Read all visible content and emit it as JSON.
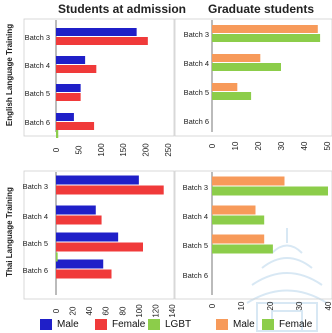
{
  "row_labels": [
    "English Language Training",
    "Thai Language Training"
  ],
  "col_titles": [
    "Students at admission",
    "Graduate students"
  ],
  "legend": [
    {
      "label": "Male",
      "color": "#1f1fc8"
    },
    {
      "label": "Female",
      "color": "#f03a3a"
    },
    {
      "label": "LGBT",
      "color": "#8ccd4a"
    },
    {
      "label": "Male",
      "color": "#f79a5a"
    },
    {
      "label": "Female",
      "color": "#8ccd4a"
    }
  ],
  "colors": {
    "male": "#1f1fc8",
    "female": "#f03a3a",
    "lgbt": "#8ccd4a",
    "grad_male": "#f79a5a",
    "grad_female": "#8ccd4a"
  },
  "chart_data": [
    {
      "type": "bar",
      "orientation": "horizontal",
      "row": "English Language Training",
      "title": "Students at admission",
      "categories": [
        "Batch 3",
        "Batch 4",
        "Batch 5",
        "Batch 6"
      ],
      "series": [
        {
          "name": "Male",
          "values": [
            180,
            65,
            55,
            40
          ]
        },
        {
          "name": "Female",
          "values": [
            205,
            90,
            55,
            85
          ]
        },
        {
          "name": "LGBT",
          "values": [
            0,
            0,
            0,
            5
          ]
        }
      ],
      "xlim": [
        0,
        250
      ],
      "xticks": [
        0,
        50,
        100,
        150,
        200,
        250
      ]
    },
    {
      "type": "bar",
      "orientation": "horizontal",
      "row": "English Language Training",
      "title": "Graduate students",
      "categories": [
        "Batch 3",
        "Batch 4",
        "Batch 5",
        "Batch 6"
      ],
      "series": [
        {
          "name": "Male",
          "values": [
            46,
            21,
            11,
            0
          ]
        },
        {
          "name": "Female",
          "values": [
            47,
            30,
            17,
            0
          ]
        }
      ],
      "xlim": [
        0,
        50
      ],
      "xticks": [
        0,
        10,
        20,
        30,
        40,
        50
      ]
    },
    {
      "type": "bar",
      "orientation": "horizontal",
      "row": "Thai Language Training",
      "title": "",
      "categories": [
        "Batch 3",
        "Batch 4",
        "Batch 5",
        "Batch 6"
      ],
      "series": [
        {
          "name": "Male",
          "values": [
            100,
            48,
            75,
            57
          ]
        },
        {
          "name": "Female",
          "values": [
            130,
            55,
            105,
            67
          ]
        },
        {
          "name": "LGBT",
          "values": [
            0,
            0,
            2,
            0
          ]
        }
      ],
      "xlim": [
        0,
        140
      ],
      "xticks": [
        0,
        20,
        40,
        60,
        80,
        100,
        120,
        140
      ]
    },
    {
      "type": "bar",
      "orientation": "horizontal",
      "row": "Thai Language Training",
      "title": "",
      "categories": [
        "Batch 3",
        "Batch 4",
        "Batch 5",
        "Batch 6"
      ],
      "series": [
        {
          "name": "Male",
          "values": [
            25,
            15,
            18,
            0
          ]
        },
        {
          "name": "Female",
          "values": [
            40,
            18,
            21,
            0
          ]
        }
      ],
      "xlim": [
        0,
        40
      ],
      "xticks": [
        0,
        10,
        20,
        30,
        40
      ]
    }
  ]
}
